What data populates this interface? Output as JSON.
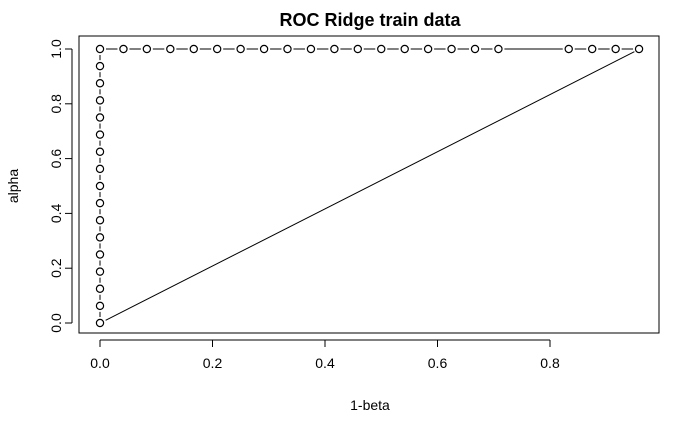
{
  "chart_data": {
    "type": "scatter",
    "title": "ROC Ridge train data",
    "xlabel": "1-beta",
    "ylabel": "alpha",
    "xlim": [
      0,
      0.96
    ],
    "ylim": [
      0,
      1
    ],
    "xticks": [
      "0.0",
      "0.2",
      "0.4",
      "0.6",
      "0.8"
    ],
    "yticks": [
      "0.0",
      "0.2",
      "0.4",
      "0.6",
      "0.8",
      "1.0"
    ],
    "grid": false,
    "legend": "none",
    "series": [
      {
        "points": [
          [
            0,
            0
          ],
          [
            0,
            0.0625
          ],
          [
            0,
            0.125
          ],
          [
            0,
            0.1875
          ],
          [
            0,
            0.25
          ],
          [
            0,
            0.3125
          ],
          [
            0,
            0.375
          ],
          [
            0,
            0.4375
          ],
          [
            0,
            0.5
          ],
          [
            0,
            0.5625
          ],
          [
            0,
            0.625
          ],
          [
            0,
            0.6875
          ],
          [
            0,
            0.75
          ],
          [
            0,
            0.8125
          ],
          [
            0,
            0.875
          ],
          [
            0,
            0.9375
          ],
          [
            0,
            1.0
          ],
          [
            0.0417,
            1.0
          ],
          [
            0.0833,
            1.0
          ],
          [
            0.125,
            1.0
          ],
          [
            0.1667,
            1.0
          ],
          [
            0.2083,
            1.0
          ],
          [
            0.25,
            1.0
          ],
          [
            0.2917,
            1.0
          ],
          [
            0.3333,
            1.0
          ],
          [
            0.375,
            1.0
          ],
          [
            0.4167,
            1.0
          ],
          [
            0.4583,
            1.0
          ],
          [
            0.5,
            1.0
          ],
          [
            0.5417,
            1.0
          ],
          [
            0.5833,
            1.0
          ],
          [
            0.625,
            1.0
          ],
          [
            0.6667,
            1.0
          ],
          [
            0.7083,
            1.0
          ],
          [
            0.8333,
            1.0
          ],
          [
            0.875,
            1.0
          ],
          [
            0.9167,
            1.0
          ],
          [
            0.9583,
            1.0
          ]
        ]
      }
    ],
    "reference_line": {
      "from": [
        0.01,
        0.01
      ],
      "to": [
        0.95,
        0.99
      ]
    }
  }
}
